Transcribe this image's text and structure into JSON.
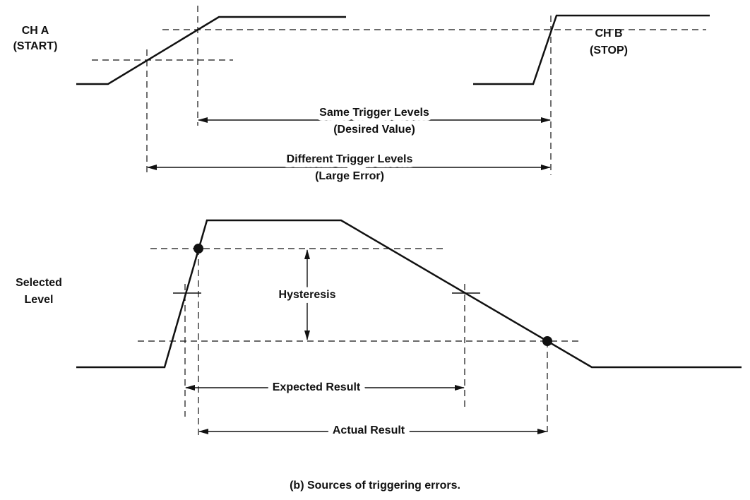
{
  "labels": {
    "ch_a": "CH A",
    "ch_a_role": "(START)",
    "ch_b": "CH B",
    "ch_b_role": "(STOP)",
    "same": "Same Trigger Levels",
    "same_note": "(Desired Value)",
    "different": "Different Trigger Levels",
    "different_note": "(Large Error)",
    "selected": "Selected",
    "level": "Level",
    "hysteresis": "Hysteresis",
    "expected": "Expected Result",
    "actual": "Actual Result"
  },
  "caption": "(b) Sources of triggering errors."
}
